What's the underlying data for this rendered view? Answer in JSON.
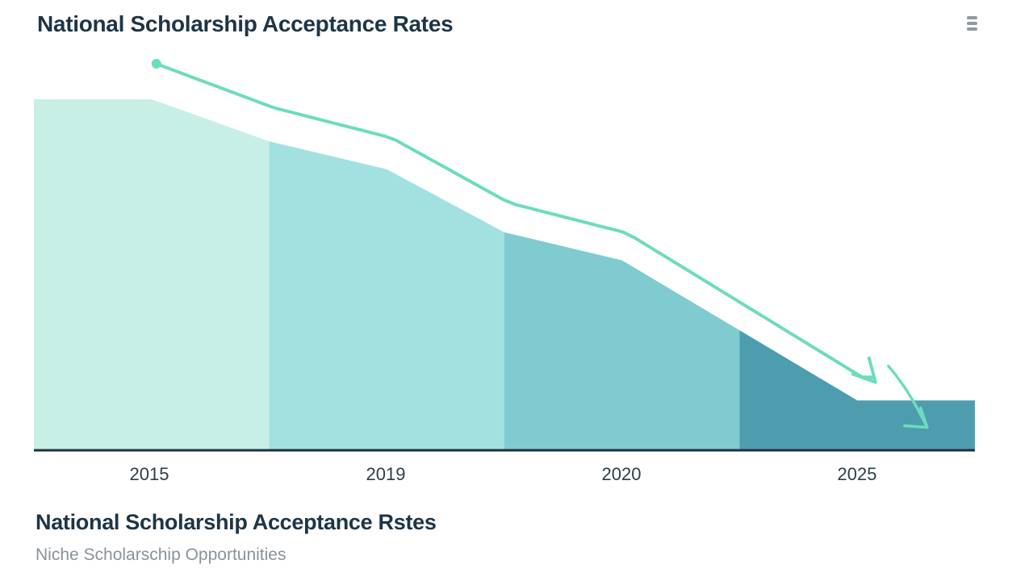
{
  "header": {
    "title": "National Scholarship Acceptance Rates",
    "menu_icon": "menu-icon"
  },
  "chart_data": {
    "type": "area",
    "title": "National Scholarship Acceptance Rates",
    "categories": [
      "2015",
      "2019",
      "2020",
      "2025"
    ],
    "segment_colors": [
      "#c8efe6",
      "#a3e1e1",
      "#7fcbd0",
      "#4d9daf"
    ],
    "series": [
      {
        "x": [
          0.0,
          0.5,
          1.0,
          1.5,
          2.0,
          2.5,
          3.0,
          3.5,
          4.0
        ],
        "values": [
          100,
          100,
          88,
          80,
          62,
          54,
          34,
          14,
          14
        ]
      }
    ],
    "trend_color": "#6cdcbf",
    "ylim": [
      0,
      100
    ],
    "grid": false
  },
  "caption": {
    "title": "National Scholarship Acceptance Rstes",
    "subtitle": "Niche Scholarschip Opportunities"
  }
}
